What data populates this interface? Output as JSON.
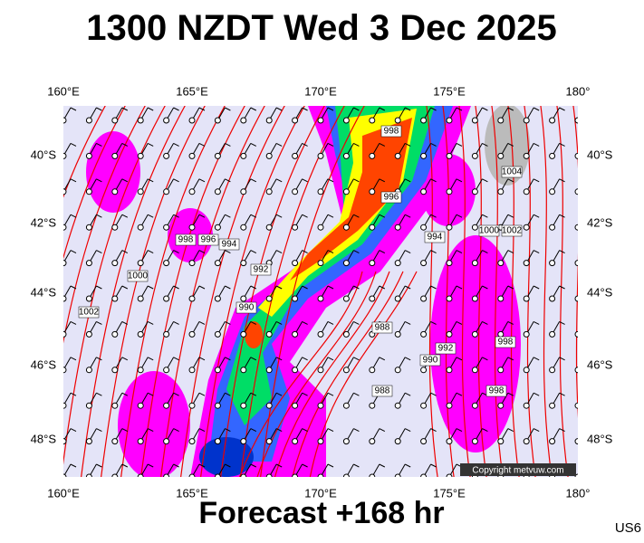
{
  "title": "1300 NZDT Wed 3 Dec 2025",
  "lon_labels": [
    "160°E",
    "165°E",
    "170°E",
    "175°E",
    "180°"
  ],
  "lat_labels": [
    "40°S",
    "42°S",
    "44°S",
    "46°S",
    "48°S"
  ],
  "isobar_labels": [
    "998",
    "996",
    "994",
    "992",
    "990",
    "996",
    "998",
    "1000",
    "1002",
    "1004",
    "1000",
    "1002",
    "994",
    "988",
    "990",
    "992",
    "998",
    "998",
    "988"
  ],
  "copyright": "Copyright metvuw.com",
  "footer": "Forecast +168 hr",
  "code": "US6"
}
